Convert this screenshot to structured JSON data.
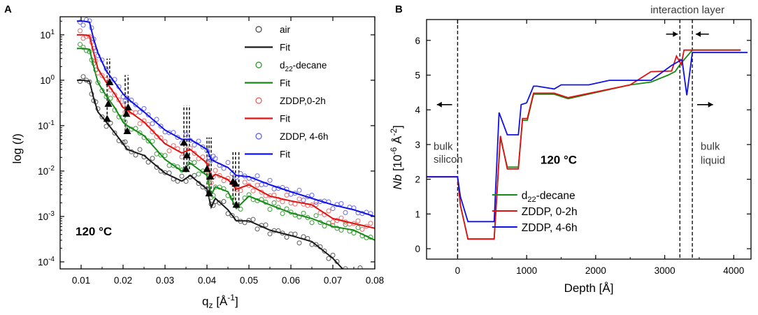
{
  "chart_data": [
    {
      "panel": "A",
      "type": "scatter",
      "title": "",
      "xlabel": "q_z [Å^-1]",
      "ylabel": "log (I)",
      "xscale": "linear",
      "yscale": "log",
      "xlim": [
        0.005,
        0.08
      ],
      "ylim": [
        7e-05,
        25
      ],
      "xticks": [
        0.01,
        0.02,
        0.03,
        0.04,
        0.05,
        0.06,
        0.07,
        0.08
      ],
      "xtick_labels": [
        "0.01",
        "0.02",
        "0.03",
        "0.04",
        "0.05",
        "0.06",
        "0.07",
        "0.08"
      ],
      "yticks": [
        0.0001,
        0.001,
        0.01,
        0.1,
        1,
        10
      ],
      "ytick_base": "10",
      "ytick_exponents": [
        "-4",
        "-3",
        "-2",
        "-1",
        "0",
        "1"
      ],
      "annotation": "120 °C",
      "legend_position": "top-right",
      "legend": [
        {
          "label": "air",
          "kind": "marker",
          "color": "#5a5a5a"
        },
        {
          "label": "Fit",
          "kind": "line",
          "color": "#1a1a1a"
        },
        {
          "label": "d",
          "sub": "22",
          "rest": "-decane",
          "kind": "marker",
          "color": "#3aa03a"
        },
        {
          "label": "Fit",
          "kind": "line",
          "color": "#158a15"
        },
        {
          "label": "ZDDP,0-2h",
          "kind": "marker",
          "color": "#ee6a6a"
        },
        {
          "label": "Fit",
          "kind": "line",
          "color": "#e31010"
        },
        {
          "label": "ZDDP, 4-6h",
          "kind": "marker",
          "color": "#6a6af0"
        },
        {
          "label": "Fit",
          "kind": "line",
          "color": "#1010e8"
        }
      ],
      "series": [
        {
          "name": "air",
          "color": "#1a1a1a",
          "marker_color": "#5a5a5a",
          "x": [
            0.009,
            0.0105,
            0.012,
            0.013,
            0.014,
            0.016,
            0.018,
            0.02,
            0.021,
            0.025,
            0.03,
            0.034,
            0.036,
            0.04,
            0.041,
            0.042,
            0.045,
            0.047,
            0.05,
            0.055,
            0.06,
            0.065,
            0.07,
            0.073,
            0.08
          ],
          "y": [
            1.0,
            1.0,
            0.95,
            0.4,
            0.2,
            0.12,
            0.07,
            0.04,
            0.03,
            0.022,
            0.009,
            0.006,
            0.008,
            0.004,
            0.0016,
            0.0025,
            0.0014,
            0.0008,
            0.0008,
            0.0005,
            0.00038,
            0.00028,
            0.00012,
            6e-05,
            6e-05
          ]
        },
        {
          "name": "d22-decane",
          "color": "#158a15",
          "marker_color": "#3aa03a",
          "x": [
            0.009,
            0.0105,
            0.012,
            0.013,
            0.014,
            0.016,
            0.018,
            0.02,
            0.021,
            0.025,
            0.03,
            0.034,
            0.036,
            0.04,
            0.041,
            0.042,
            0.045,
            0.047,
            0.05,
            0.055,
            0.06,
            0.065,
            0.07,
            0.075,
            0.08
          ],
          "y": [
            5.0,
            5.0,
            4.8,
            2.0,
            0.9,
            0.45,
            0.25,
            0.12,
            0.1,
            0.06,
            0.018,
            0.01,
            0.015,
            0.008,
            0.003,
            0.0045,
            0.0035,
            0.0015,
            0.0028,
            0.0018,
            0.0012,
            0.0009,
            0.0006,
            0.0005,
            0.0003
          ]
        },
        {
          "name": "ZDDP, 0-2h",
          "color": "#e31010",
          "marker_color": "#ee6a6a",
          "x": [
            0.009,
            0.0105,
            0.012,
            0.013,
            0.014,
            0.016,
            0.018,
            0.02,
            0.021,
            0.025,
            0.03,
            0.034,
            0.036,
            0.04,
            0.041,
            0.042,
            0.045,
            0.047,
            0.05,
            0.055,
            0.06,
            0.065,
            0.07,
            0.075,
            0.08
          ],
          "y": [
            10,
            10,
            9.5,
            4.0,
            1.8,
            0.9,
            0.5,
            0.25,
            0.22,
            0.12,
            0.04,
            0.025,
            0.03,
            0.015,
            0.007,
            0.0085,
            0.0065,
            0.004,
            0.005,
            0.0028,
            0.0022,
            0.0018,
            0.0009,
            0.0007,
            0.00055
          ]
        },
        {
          "name": "ZDDP, 4-6h",
          "color": "#1010e8",
          "marker_color": "#6a6af0",
          "x": [
            0.009,
            0.0105,
            0.012,
            0.013,
            0.014,
            0.016,
            0.018,
            0.02,
            0.021,
            0.025,
            0.03,
            0.034,
            0.036,
            0.04,
            0.041,
            0.042,
            0.045,
            0.047,
            0.05,
            0.055,
            0.06,
            0.065,
            0.07,
            0.075,
            0.08
          ],
          "y": [
            20,
            20,
            19,
            8.0,
            4.0,
            1.6,
            0.9,
            0.5,
            0.4,
            0.2,
            0.08,
            0.05,
            0.05,
            0.03,
            0.018,
            0.016,
            0.012,
            0.008,
            0.0075,
            0.005,
            0.0035,
            0.0025,
            0.0018,
            0.0014,
            0.001
          ]
        }
      ],
      "markers": [
        {
          "q": 0.0162,
          "y": 0.14,
          "series": "air"
        },
        {
          "q": 0.021,
          "y": 0.075,
          "series": "air"
        },
        {
          "q": 0.035,
          "y": 0.011,
          "series": "air"
        },
        {
          "q": 0.0405,
          "y": 0.0032,
          "series": "air"
        },
        {
          "q": 0.047,
          "y": 0.0018,
          "series": "air"
        },
        {
          "q": 0.0165,
          "y": 0.3,
          "series": "d22-decane"
        },
        {
          "q": 0.0208,
          "y": 0.18,
          "series": "d22-decane"
        },
        {
          "q": 0.0352,
          "y": 0.022,
          "series": "d22-decane"
        },
        {
          "q": 0.0408,
          "y": 0.0075,
          "series": "d22-decane"
        },
        {
          "q": 0.0462,
          "y": 0.0058,
          "series": "d22-decane"
        },
        {
          "q": 0.0168,
          "y": 0.9,
          "series": "ZDDP, 4-6h"
        },
        {
          "q": 0.0212,
          "y": 0.25,
          "series": "ZDDP, 4-6h"
        },
        {
          "q": 0.0345,
          "y": 0.042,
          "series": "ZDDP, 4-6h"
        },
        {
          "q": 0.04,
          "y": 0.011,
          "series": "ZDDP, 4-6h"
        },
        {
          "q": 0.0468,
          "y": 0.0052,
          "series": "ZDDP, 4-6h"
        }
      ],
      "dashed_lines": [
        {
          "q": 0.0162,
          "from": 0.14,
          "to": 3.0
        },
        {
          "q": 0.0168,
          "from": 0.9,
          "to": 3.0
        },
        {
          "q": 0.0205,
          "from": 0.075,
          "to": 1.3
        },
        {
          "q": 0.0212,
          "from": 0.25,
          "to": 1.3
        },
        {
          "q": 0.0345,
          "from": 0.011,
          "to": 0.28
        },
        {
          "q": 0.0352,
          "from": 0.011,
          "to": 0.28
        },
        {
          "q": 0.0358,
          "from": 0.011,
          "to": 0.28
        },
        {
          "q": 0.04,
          "from": 0.0032,
          "to": 0.055
        },
        {
          "q": 0.0405,
          "from": 0.0032,
          "to": 0.055
        },
        {
          "q": 0.041,
          "from": 0.0032,
          "to": 0.055
        },
        {
          "q": 0.0462,
          "from": 0.0018,
          "to": 0.028
        },
        {
          "q": 0.0468,
          "from": 0.0018,
          "to": 0.028
        },
        {
          "q": 0.0476,
          "from": 0.0018,
          "to": 0.028
        }
      ]
    },
    {
      "panel": "B",
      "type": "line",
      "title": "",
      "xlabel": "Depth [Å]",
      "ylabel": "Nb [10^-6 Å^-2]",
      "xlim": [
        -450,
        4250
      ],
      "ylim": [
        -0.3,
        6.6
      ],
      "xticks": [
        0,
        1000,
        2000,
        3000,
        4000
      ],
      "yticks": [
        0,
        1,
        2,
        3,
        4,
        5,
        6
      ],
      "annotation": "120 °C",
      "text_labels": {
        "interaction": "interaction layer",
        "bulk_silicon_1": "bulk",
        "bulk_silicon_2": "silicon",
        "bulk_liquid_1": "bulk",
        "bulk_liquid_2": "liquid"
      },
      "vlines": [
        0,
        3220,
        3400
      ],
      "legend_position": "lower-center",
      "legend": [
        {
          "label": "d",
          "sub": "22",
          "rest": "-decane",
          "color": "#158a15"
        },
        {
          "label": "ZDDP, 0-2h",
          "color": "#e31010"
        },
        {
          "label": "ZDDP, 4-6h",
          "color": "#1010e8"
        }
      ],
      "series": [
        {
          "name": "d22-decane",
          "color": "#158a15",
          "x": [
            -450,
            0,
            0,
            40,
            40,
            150,
            150,
            530,
            530,
            620,
            620,
            720,
            720,
            880,
            880,
            940,
            940,
            1010,
            1010,
            1100,
            1100,
            1400,
            1400,
            1600,
            1600,
            2500,
            2500,
            2800,
            2800,
            3050,
            3050,
            3150,
            3150,
            3220,
            3220,
            3400,
            3400,
            4100
          ],
          "y": [
            2.07,
            2.07,
            2.07,
            1.25,
            1.25,
            0.28,
            0.28,
            0.28,
            0.28,
            3.2,
            3.2,
            2.35,
            2.35,
            2.35,
            2.35,
            3.7,
            3.7,
            3.7,
            3.7,
            4.45,
            4.45,
            4.45,
            4.45,
            4.32,
            4.32,
            4.72,
            4.72,
            4.8,
            4.8,
            5.0,
            5.0,
            5.1,
            5.1,
            5.3,
            5.3,
            5.72,
            5.72,
            5.72
          ]
        },
        {
          "name": "ZDDP, 0-2h",
          "color": "#e31010",
          "x": [
            -450,
            0,
            0,
            40,
            40,
            150,
            150,
            530,
            530,
            620,
            620,
            720,
            720,
            880,
            880,
            940,
            940,
            1010,
            1010,
            1100,
            1100,
            1400,
            1400,
            1600,
            1600,
            2500,
            2500,
            2800,
            2800,
            3100,
            3100,
            3170,
            3170,
            3240,
            3240,
            3280,
            3280,
            3400,
            3400,
            4100
          ],
          "y": [
            2.07,
            2.07,
            2.07,
            1.25,
            1.25,
            0.28,
            0.28,
            0.28,
            0.28,
            3.25,
            3.25,
            2.3,
            2.3,
            2.3,
            2.3,
            3.75,
            3.75,
            3.75,
            3.75,
            4.48,
            4.48,
            4.48,
            4.48,
            4.35,
            4.35,
            4.72,
            4.72,
            5.1,
            5.1,
            5.12,
            5.12,
            5.55,
            5.55,
            5.3,
            5.3,
            5.72,
            5.72,
            5.72,
            5.72,
            5.72
          ]
        },
        {
          "name": "ZDDP, 4-6h",
          "color": "#1010e8",
          "x": [
            -450,
            0,
            0,
            40,
            40,
            150,
            150,
            530,
            530,
            600,
            600,
            720,
            720,
            880,
            880,
            920,
            920,
            1000,
            1000,
            1100,
            1100,
            1150,
            1150,
            1400,
            1400,
            1500,
            1500,
            1900,
            1900,
            2200,
            2200,
            2800,
            2800,
            3100,
            3100,
            3250,
            3250,
            3320,
            3320,
            3400,
            3400,
            4200
          ],
          "y": [
            2.07,
            2.07,
            2.07,
            1.5,
            1.5,
            0.78,
            0.78,
            0.78,
            0.78,
            3.92,
            3.92,
            3.28,
            3.28,
            3.28,
            3.28,
            4.15,
            4.15,
            4.2,
            4.2,
            4.68,
            4.68,
            4.68,
            4.68,
            4.6,
            4.6,
            4.72,
            4.72,
            4.72,
            4.72,
            4.85,
            4.85,
            4.85,
            4.85,
            5.28,
            5.28,
            5.45,
            5.45,
            4.42,
            4.42,
            5.65,
            5.65,
            5.65
          ]
        }
      ]
    }
  ]
}
